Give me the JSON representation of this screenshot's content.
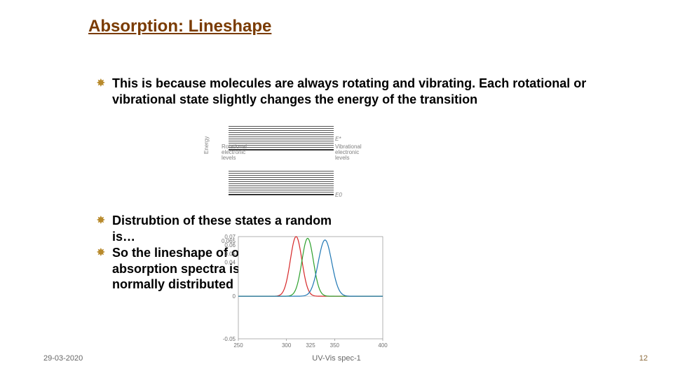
{
  "title": "Absorption: Lineshape",
  "title_color": "#7a3b00",
  "bullets": {
    "b1": "This is because molecules are always rotating and vibrating. Each rotational or vibrational state slightly changes the energy of the transition",
    "b2_part1": "Distrubtion of these states",
    "b2_part2": "a random",
    "b2_line2": "is…",
    "b3_line1": "So the lineshape of our",
    "b3_line2": "absorption spectra is…",
    "b3_line3": "normally distributed"
  },
  "bullet_star_color": "#b88a2c",
  "energy_diagram": {
    "ylabel": "Energy",
    "upper_label_left": "Rotational\nelectronic levels",
    "upper_label_right_e": "E*",
    "upper_label_right_txt": "Vibrational\nelectronic levels",
    "lower_label_right_e": "E0",
    "line_color": "#555555",
    "upper_levels": 12,
    "lower_levels": 12
  },
  "gauss_chart": {
    "type": "line",
    "xlim": [
      250,
      400
    ],
    "ylim": [
      -0.05,
      0.07
    ],
    "xticks": [
      250,
      300,
      350,
      400
    ],
    "xtick_sub": [
      325
    ],
    "yticks": [
      -0.05,
      0,
      0.05,
      0.06,
      0.065,
      0.04,
      0.07
    ],
    "ytick_labels": [
      "-0.05",
      "0",
      "0.05",
      "0.06",
      "0.065",
      "0.04",
      "0.07"
    ],
    "background_color": "#ffffff",
    "axis_color": "#808080",
    "curves": [
      {
        "center": 310,
        "height": 0.07,
        "sigma": 6,
        "color": "#d62728"
      },
      {
        "center": 322,
        "height": 0.068,
        "sigma": 6,
        "color": "#2ca02c"
      },
      {
        "center": 340,
        "height": 0.066,
        "sigma": 7,
        "color": "#1f77b4"
      }
    ],
    "tick_fontsize": 8
  },
  "footer": {
    "date": "29-03-2020",
    "center": "UV-Vis spec-1",
    "page": "12"
  }
}
